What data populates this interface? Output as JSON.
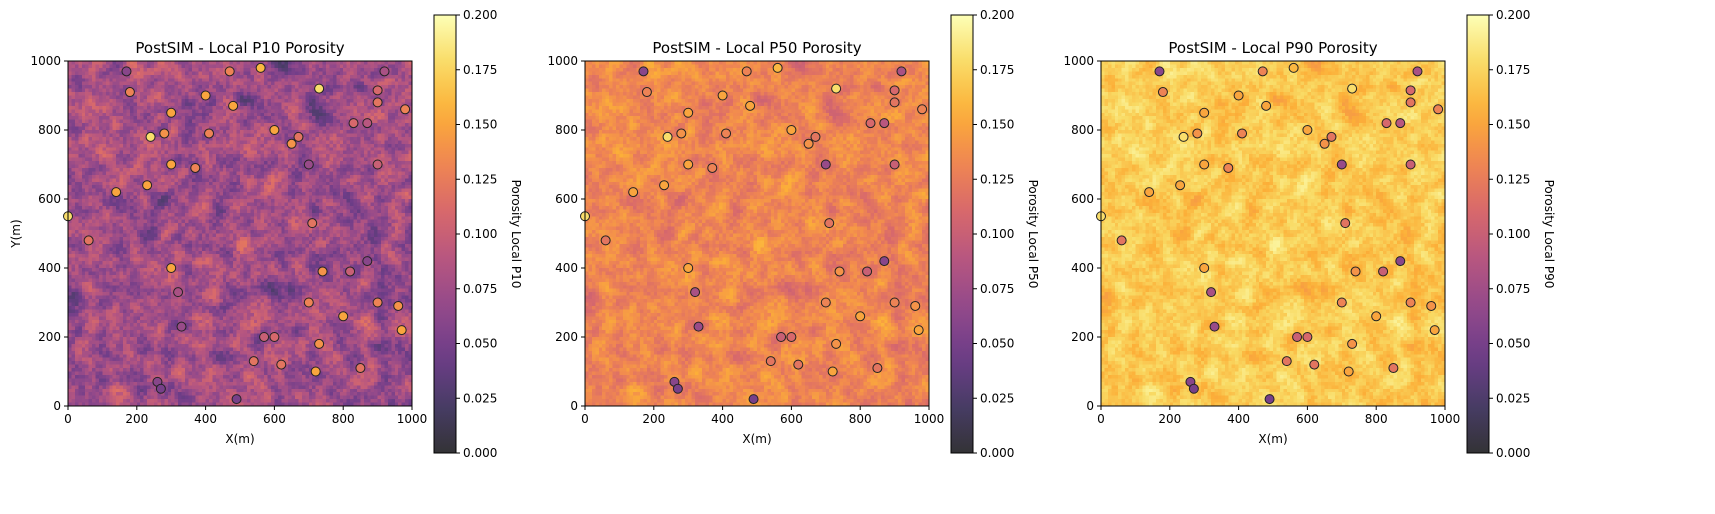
{
  "colors": {
    "colormap": [
      "#000004",
      "#1b0c41",
      "#4a0c6b",
      "#781c6d",
      "#a52c60",
      "#cf4446",
      "#ed6925",
      "#fb9b06",
      "#f7d13d",
      "#fcffa4"
    ],
    "colormap_alpha": 0.8,
    "well_edge": "#222222",
    "background": "#ffffff"
  },
  "chart_data": [
    {
      "type": "heatmap",
      "title": "PostSIM - Local P10 Porosity",
      "xlabel": "X(m)",
      "ylabel": "Y(m)",
      "xlim": [
        0,
        1000
      ],
      "ylim": [
        0,
        1000
      ],
      "xticks": [
        "0",
        "200",
        "400",
        "600",
        "800",
        "1000"
      ],
      "yticks": [
        "0",
        "200",
        "400",
        "600",
        "800",
        "1000"
      ],
      "colorbar": {
        "label": "Porosity Local P10",
        "range": [
          0.0,
          0.2
        ],
        "ticks": [
          "0.000",
          "0.025",
          "0.050",
          "0.075",
          "0.100",
          "0.125",
          "0.150",
          "0.175",
          "0.200"
        ]
      },
      "grid_mean": 0.075,
      "grid_spread": 0.06
    },
    {
      "type": "heatmap",
      "title": "PostSIM - Local P50 Porosity",
      "xlabel": "X(m)",
      "ylabel": "",
      "xlim": [
        0,
        1000
      ],
      "ylim": [
        0,
        1000
      ],
      "xticks": [
        "0",
        "200",
        "400",
        "600",
        "800",
        "1000"
      ],
      "yticks": [
        "0",
        "200",
        "400",
        "600",
        "800",
        "1000"
      ],
      "colorbar": {
        "label": "Porosity Local P50",
        "range": [
          0.0,
          0.2
        ],
        "ticks": [
          "0.000",
          "0.025",
          "0.050",
          "0.075",
          "0.100",
          "0.125",
          "0.150",
          "0.175",
          "0.200"
        ]
      },
      "grid_mean": 0.132,
      "grid_spread": 0.035
    },
    {
      "type": "heatmap",
      "title": "PostSIM - Local P90 Porosity",
      "xlabel": "X(m)",
      "ylabel": "",
      "xlim": [
        0,
        1000
      ],
      "ylim": [
        0,
        1000
      ],
      "xticks": [
        "0",
        "200",
        "400",
        "600",
        "800",
        "1000"
      ],
      "yticks": [
        "0",
        "200",
        "400",
        "600",
        "800",
        "1000"
      ],
      "colorbar": {
        "label": "Porosity Local P90",
        "range": [
          0.0,
          0.2
        ],
        "ticks": [
          "0.000",
          "0.025",
          "0.050",
          "0.075",
          "0.100",
          "0.125",
          "0.150",
          "0.175",
          "0.200"
        ]
      },
      "grid_mean": 0.17,
      "grid_spread": 0.03
    }
  ],
  "wells": [
    {
      "x": 170,
      "y": 970,
      "porosity": 0.06
    },
    {
      "x": 180,
      "y": 910,
      "porosity": 0.13
    },
    {
      "x": 300,
      "y": 850,
      "porosity": 0.15
    },
    {
      "x": 400,
      "y": 900,
      "porosity": 0.15
    },
    {
      "x": 470,
      "y": 970,
      "porosity": 0.13
    },
    {
      "x": 560,
      "y": 980,
      "porosity": 0.16
    },
    {
      "x": 730,
      "y": 920,
      "porosity": 0.18
    },
    {
      "x": 900,
      "y": 915,
      "porosity": 0.11
    },
    {
      "x": 920,
      "y": 970,
      "porosity": 0.08
    },
    {
      "x": 480,
      "y": 870,
      "porosity": 0.15
    },
    {
      "x": 900,
      "y": 880,
      "porosity": 0.12
    },
    {
      "x": 980,
      "y": 860,
      "porosity": 0.13
    },
    {
      "x": 240,
      "y": 780,
      "porosity": 0.18
    },
    {
      "x": 280,
      "y": 790,
      "porosity": 0.14
    },
    {
      "x": 410,
      "y": 790,
      "porosity": 0.13
    },
    {
      "x": 600,
      "y": 800,
      "porosity": 0.15
    },
    {
      "x": 670,
      "y": 780,
      "porosity": 0.12
    },
    {
      "x": 650,
      "y": 760,
      "porosity": 0.14
    },
    {
      "x": 830,
      "y": 820,
      "porosity": 0.11
    },
    {
      "x": 870,
      "y": 820,
      "porosity": 0.09
    },
    {
      "x": 300,
      "y": 700,
      "porosity": 0.15
    },
    {
      "x": 370,
      "y": 690,
      "porosity": 0.13
    },
    {
      "x": 700,
      "y": 700,
      "porosity": 0.07
    },
    {
      "x": 900,
      "y": 700,
      "porosity": 0.1
    },
    {
      "x": 140,
      "y": 620,
      "porosity": 0.15
    },
    {
      "x": 230,
      "y": 640,
      "porosity": 0.15
    },
    {
      "x": 0,
      "y": 550,
      "porosity": 0.18
    },
    {
      "x": 710,
      "y": 530,
      "porosity": 0.12
    },
    {
      "x": 60,
      "y": 480,
      "porosity": 0.12
    },
    {
      "x": 870,
      "y": 420,
      "porosity": 0.06
    },
    {
      "x": 300,
      "y": 400,
      "porosity": 0.15
    },
    {
      "x": 740,
      "y": 390,
      "porosity": 0.14
    },
    {
      "x": 820,
      "y": 390,
      "porosity": 0.1
    },
    {
      "x": 320,
      "y": 330,
      "porosity": 0.08
    },
    {
      "x": 700,
      "y": 300,
      "porosity": 0.13
    },
    {
      "x": 900,
      "y": 300,
      "porosity": 0.13
    },
    {
      "x": 960,
      "y": 290,
      "porosity": 0.14
    },
    {
      "x": 800,
      "y": 260,
      "porosity": 0.15
    },
    {
      "x": 330,
      "y": 230,
      "porosity": 0.07
    },
    {
      "x": 570,
      "y": 200,
      "porosity": 0.1
    },
    {
      "x": 600,
      "y": 200,
      "porosity": 0.11
    },
    {
      "x": 970,
      "y": 220,
      "porosity": 0.15
    },
    {
      "x": 730,
      "y": 180,
      "porosity": 0.14
    },
    {
      "x": 540,
      "y": 130,
      "porosity": 0.12
    },
    {
      "x": 620,
      "y": 120,
      "porosity": 0.12
    },
    {
      "x": 720,
      "y": 100,
      "porosity": 0.15
    },
    {
      "x": 850,
      "y": 110,
      "porosity": 0.12
    },
    {
      "x": 260,
      "y": 70,
      "porosity": 0.06
    },
    {
      "x": 270,
      "y": 50,
      "porosity": 0.05
    },
    {
      "x": 490,
      "y": 20,
      "porosity": 0.05
    }
  ]
}
